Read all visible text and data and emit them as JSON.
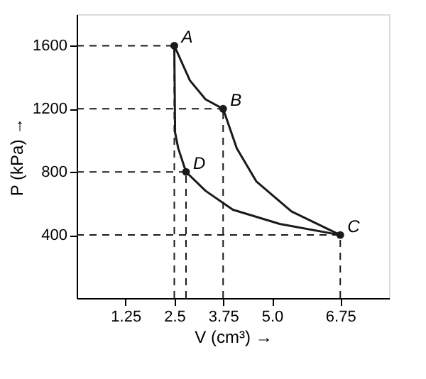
{
  "chart_data": {
    "type": "line",
    "xlabel": "V (cm³) →",
    "ylabel": "P (kPa) →",
    "xlim": [
      0,
      8
    ],
    "ylim": [
      0,
      1800
    ],
    "xticks": [
      1.25,
      2.5,
      3.75,
      {
        "value": 5,
        "label": "5.0"
      },
      6.75
    ],
    "yticks": [
      400,
      800,
      1200,
      1600
    ],
    "series": [
      {
        "color": "#1a1a1a",
        "marker": "none",
        "x": [
          2.5,
          2.9,
          3.3,
          3.75
        ],
        "values": [
          1600,
          1380,
          1260,
          1200
        ]
      },
      {
        "color": "#1a1a1a",
        "marker": "none",
        "x": [
          3.75,
          4.1,
          4.6,
          5.5,
          6.75
        ],
        "values": [
          1200,
          950,
          740,
          550,
          400
        ]
      },
      {
        "color": "#1a1a1a",
        "marker": "none",
        "x": [
          6.75,
          5.2,
          4.0,
          3.3,
          2.8,
          2.6,
          2.52,
          2.5
        ],
        "values": [
          400,
          470,
          560,
          680,
          800,
          950,
          1050,
          1600
        ]
      },
      {
        "type": "scatter",
        "color": "#1a1a1a",
        "marker": "circle",
        "line_style": "dashed",
        "x": [
          2.5,
          3.75,
          6.75,
          2.8
        ],
        "values": [
          1600,
          1200,
          400,
          800
        ]
      }
    ],
    "annotations": [
      {
        "text": "A",
        "x": 2.5,
        "y": 1600
      },
      {
        "text": "B",
        "x": 3.75,
        "y": 1200
      },
      {
        "text": "C",
        "x": 6.75,
        "y": 400
      },
      {
        "text": "D",
        "x": 2.8,
        "y": 800
      }
    ]
  }
}
